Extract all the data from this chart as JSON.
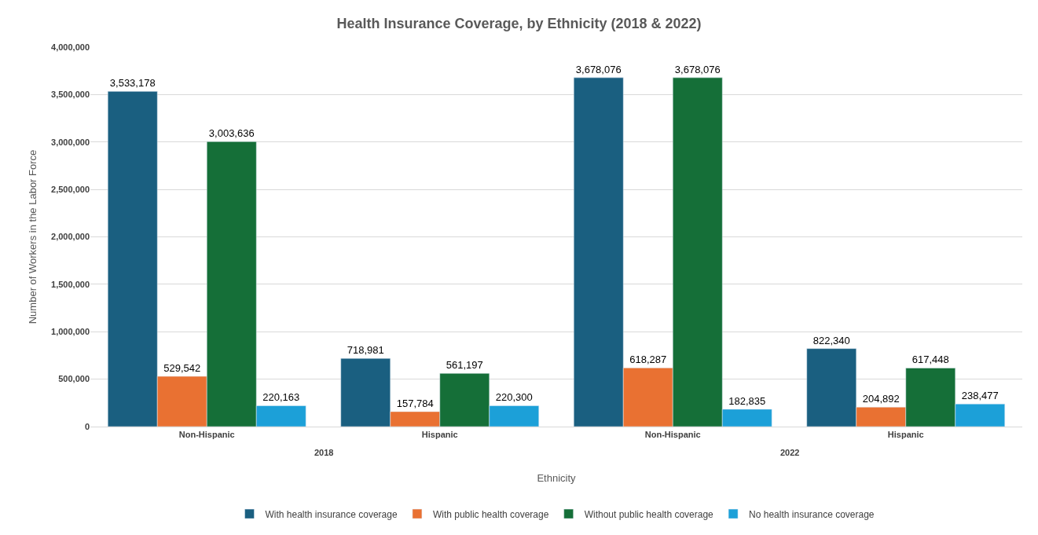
{
  "chart_data": {
    "type": "bar",
    "title": "Health Insurance Coverage, by Ethnicity (2018 & 2022)",
    "xlabel": "Ethnicity",
    "ylabel": "Number of Workers in the Labor Force",
    "categories": [
      "Non-Hispanic",
      "Hispanic",
      "Non-Hispanic",
      "Hispanic"
    ],
    "annotations": [
      "2018",
      "2022"
    ],
    "series": [
      {
        "name": "With health insurance coverage",
        "color": "#1a5f80",
        "values": [
          3533178,
          718981,
          3678076,
          822340
        ],
        "value_labels": [
          "3,533,178",
          "718,981",
          "3,678,076",
          "822,340"
        ]
      },
      {
        "name": "With public health coverage",
        "color": "#e97132",
        "values": [
          529542,
          157784,
          618287,
          204892
        ],
        "value_labels": [
          "529,542",
          "157,784",
          "618,287",
          "204,892"
        ]
      },
      {
        "name": "Without public health coverage",
        "color": "#156f38",
        "values": [
          3003636,
          561197,
          3678076,
          617448
        ],
        "value_labels": [
          "3,003,636",
          "561,197",
          "3,678,076",
          "617,448"
        ]
      },
      {
        "name": "No health insurance coverage",
        "color": "#1ca0d8",
        "values": [
          220163,
          220300,
          182835,
          238477
        ],
        "value_labels": [
          "220,163",
          "220,300",
          "182,835",
          "238,477"
        ]
      }
    ],
    "ylim": [
      0,
      4000000
    ],
    "yticks": [
      0,
      {
        "value": 500000,
        "label": "500,000"
      },
      {
        "value": 1000000,
        "label": "1,000,000"
      },
      {
        "value": 1500000,
        "label": "1,500,000"
      },
      {
        "value": 2000000,
        "label": "2,000,000"
      },
      {
        "value": 2500000,
        "label": "2,500,000"
      },
      {
        "value": 3000000,
        "label": "3,000,000"
      },
      {
        "value": 3500000,
        "label": "3,500,000"
      },
      {
        "value": 4000000,
        "label": "4,000,000"
      }
    ],
    "grid": "y",
    "legend": "bottom"
  }
}
